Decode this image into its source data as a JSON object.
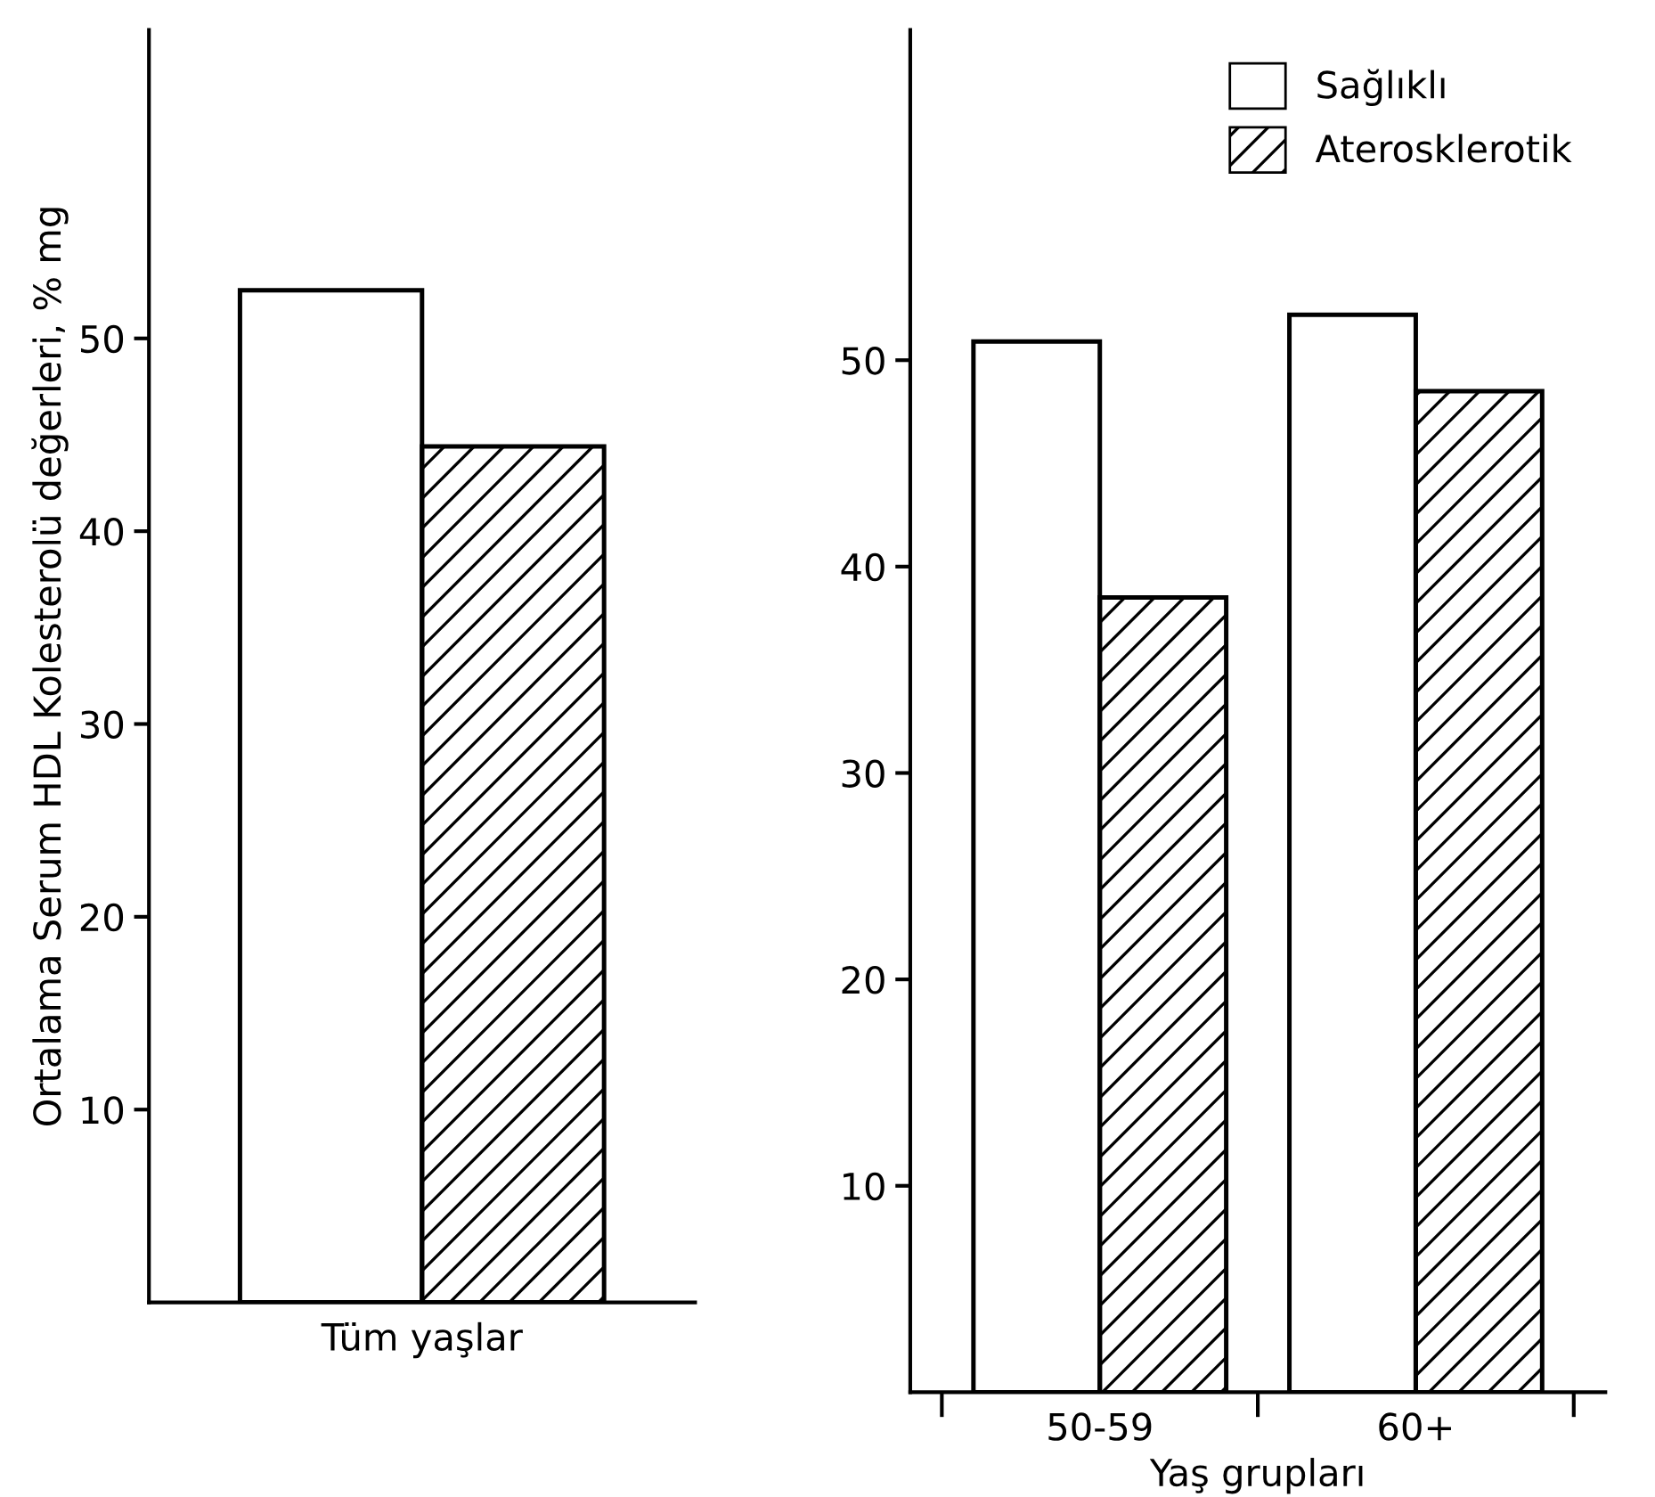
{
  "chart_data": [
    {
      "type": "bar",
      "ylabel": "Ortalama Serum HDL Kolesterolü değerleri, % mg",
      "categories": [
        "Tüm yaşlar"
      ],
      "ylim": [
        0,
        66
      ],
      "yticks": [
        10,
        20,
        30,
        40,
        50
      ],
      "grid": false,
      "legend": false,
      "series": [
        {
          "color": "#ffffff",
          "values": [
            52.5
          ]
        },
        {
          "color": "#000000",
          "values": [
            44.4
          ]
        }
      ]
    },
    {
      "type": "bar",
      "xlabel": "Yaş grupları",
      "categories": [
        "50-59",
        "60+"
      ],
      "ylim": [
        0,
        66
      ],
      "yticks": [
        10,
        20,
        30,
        40,
        50
      ],
      "grid": false,
      "legend": "top right",
      "series": [
        {
          "name": "Sağlıklı",
          "color": "#ffffff",
          "values": [
            50.9,
            52.2
          ]
        },
        {
          "name": "Aterosklerotik",
          "color": "#000000",
          "values": [
            38.5,
            48.5
          ]
        }
      ]
    }
  ]
}
